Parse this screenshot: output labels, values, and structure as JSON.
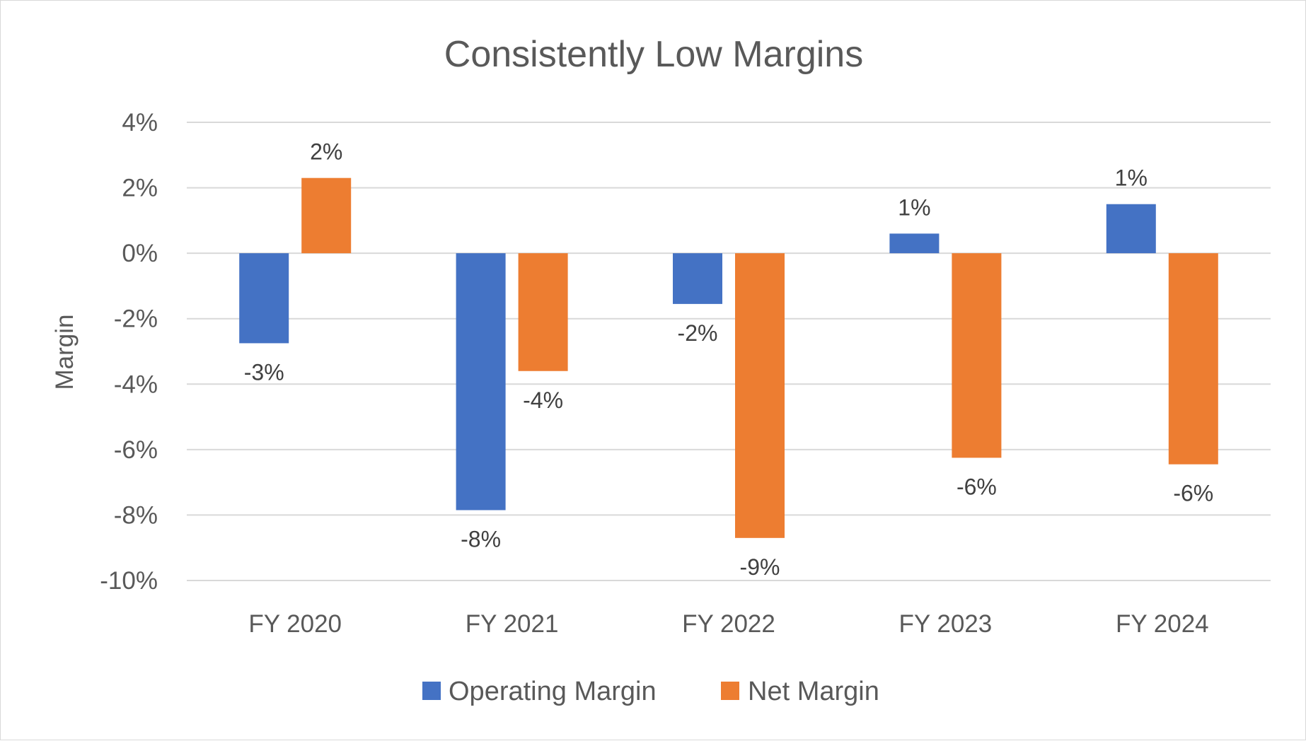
{
  "chart_data": {
    "type": "bar",
    "title": "Consistently Low Margins",
    "xlabel": "",
    "ylabel": "Margin",
    "categories": [
      "FY 2020",
      "FY 2021",
      "FY 2022",
      "FY 2023",
      "FY 2024"
    ],
    "series": [
      {
        "name": "Operating Margin",
        "color": "#4472C4",
        "values": [
          -2.75,
          -7.85,
          -1.55,
          0.6,
          1.5
        ],
        "labels": [
          "-3%",
          "-8%",
          "-2%",
          "1%",
          "1%"
        ]
      },
      {
        "name": "Net Margin",
        "color": "#ED7D31",
        "values": [
          2.3,
          -3.6,
          -8.7,
          -6.25,
          -6.45
        ],
        "labels": [
          "2%",
          "-4%",
          "-9%",
          "-6%",
          "-6%"
        ]
      }
    ],
    "ylim": [
      -10,
      4
    ],
    "yticks": [
      4,
      2,
      0,
      -2,
      -4,
      -6,
      -8,
      -10
    ],
    "ytick_labels": [
      "4%",
      "2%",
      "0%",
      "-2%",
      "-4%",
      "-6%",
      "-8%",
      "-10%"
    ],
    "grid": true,
    "legend_position": "bottom"
  }
}
